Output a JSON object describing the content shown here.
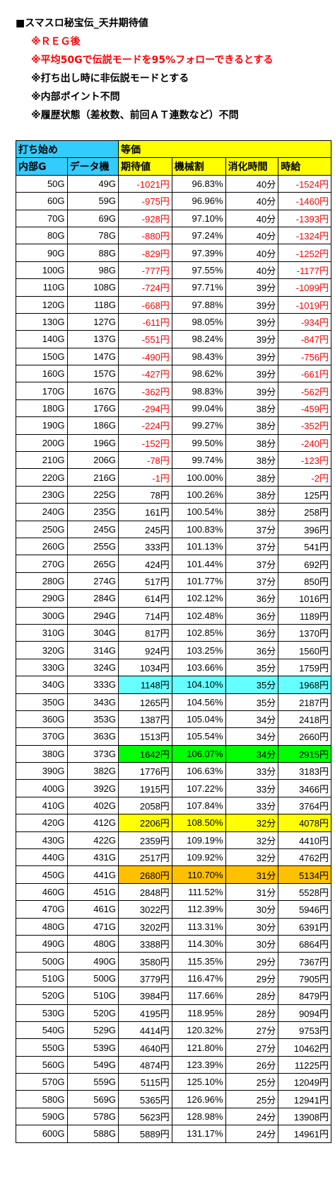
{
  "notes": [
    {
      "text": "■スマスロ秘宝伝_天井期待値",
      "color": "black",
      "kind": "title"
    },
    {
      "text": "※ＲＥＧ後",
      "color": "red",
      "kind": "sub"
    },
    {
      "text": "※平均50Gで伝説モードを95%フォローできるとする",
      "color": "red",
      "kind": "sub"
    },
    {
      "text": "※打ち出し時に非伝説モードとする",
      "color": "black",
      "kind": "sub"
    },
    {
      "text": "※内部ポイント不問",
      "color": "black",
      "kind": "sub"
    },
    {
      "text": "※履歴状態（差枚数、前回ＡＴ連数など）不問",
      "color": "black",
      "kind": "sub"
    }
  ],
  "table": {
    "group_headers": {
      "start": "打ち始め",
      "value": "等価"
    },
    "columns": [
      "内部G",
      "データ機",
      "期待値",
      "機械割",
      "消化時間",
      "時給"
    ],
    "rows": [
      [
        "50G",
        "49G",
        "-1021円",
        "96.83%",
        "40分",
        "-1524円"
      ],
      [
        "60G",
        "59G",
        "-975円",
        "96.96%",
        "40分",
        "-1460円"
      ],
      [
        "70G",
        "69G",
        "-928円",
        "97.10%",
        "40分",
        "-1393円"
      ],
      [
        "80G",
        "78G",
        "-880円",
        "97.24%",
        "40分",
        "-1324円"
      ],
      [
        "90G",
        "88G",
        "-829円",
        "97.39%",
        "40分",
        "-1252円"
      ],
      [
        "100G",
        "98G",
        "-777円",
        "97.55%",
        "40分",
        "-1177円"
      ],
      [
        "110G",
        "108G",
        "-724円",
        "97.71%",
        "39分",
        "-1099円"
      ],
      [
        "120G",
        "118G",
        "-668円",
        "97.88%",
        "39分",
        "-1019円"
      ],
      [
        "130G",
        "127G",
        "-611円",
        "98.05%",
        "39分",
        "-934円"
      ],
      [
        "140G",
        "137G",
        "-551円",
        "98.24%",
        "39分",
        "-847円"
      ],
      [
        "150G",
        "147G",
        "-490円",
        "98.43%",
        "39分",
        "-756円"
      ],
      [
        "160G",
        "157G",
        "-427円",
        "98.62%",
        "39分",
        "-661円"
      ],
      [
        "170G",
        "167G",
        "-362円",
        "98.83%",
        "39分",
        "-562円"
      ],
      [
        "180G",
        "176G",
        "-294円",
        "99.04%",
        "38分",
        "-459円"
      ],
      [
        "190G",
        "186G",
        "-224円",
        "99.27%",
        "38分",
        "-352円"
      ],
      [
        "200G",
        "196G",
        "-152円",
        "99.50%",
        "38分",
        "-240円"
      ],
      [
        "210G",
        "206G",
        "-78円",
        "99.74%",
        "38分",
        "-123円"
      ],
      [
        "220G",
        "216G",
        "-1円",
        "100.00%",
        "38分",
        "-2円"
      ],
      [
        "230G",
        "225G",
        "78円",
        "100.26%",
        "38分",
        "125円"
      ],
      [
        "240G",
        "235G",
        "161円",
        "100.54%",
        "38分",
        "258円"
      ],
      [
        "250G",
        "245G",
        "245円",
        "100.83%",
        "37分",
        "396円"
      ],
      [
        "260G",
        "255G",
        "333円",
        "101.13%",
        "37分",
        "541円"
      ],
      [
        "270G",
        "265G",
        "424円",
        "101.44%",
        "37分",
        "692円"
      ],
      [
        "280G",
        "274G",
        "517円",
        "101.77%",
        "37分",
        "850円"
      ],
      [
        "290G",
        "284G",
        "614円",
        "102.12%",
        "36分",
        "1016円"
      ],
      [
        "300G",
        "294G",
        "714円",
        "102.48%",
        "36分",
        "1189円"
      ],
      [
        "310G",
        "304G",
        "817円",
        "102.85%",
        "36分",
        "1370円"
      ],
      [
        "320G",
        "314G",
        "924円",
        "103.25%",
        "36分",
        "1560円"
      ],
      [
        "330G",
        "324G",
        "1034円",
        "103.66%",
        "35分",
        "1759円"
      ],
      [
        "340G",
        "333G",
        "1148円",
        "104.10%",
        "35分",
        "1968円"
      ],
      [
        "350G",
        "343G",
        "1265円",
        "104.56%",
        "35分",
        "2187円"
      ],
      [
        "360G",
        "353G",
        "1387円",
        "105.04%",
        "34分",
        "2418円"
      ],
      [
        "370G",
        "363G",
        "1513円",
        "105.54%",
        "34分",
        "2660円"
      ],
      [
        "380G",
        "373G",
        "1642円",
        "106.07%",
        "34分",
        "2915円"
      ],
      [
        "390G",
        "382G",
        "1776円",
        "106.63%",
        "33分",
        "3183円"
      ],
      [
        "400G",
        "392G",
        "1915円",
        "107.22%",
        "33分",
        "3466円"
      ],
      [
        "410G",
        "402G",
        "2058円",
        "107.84%",
        "33分",
        "3764円"
      ],
      [
        "420G",
        "412G",
        "2206円",
        "108.50%",
        "32分",
        "4078円"
      ],
      [
        "430G",
        "422G",
        "2359円",
        "109.19%",
        "32分",
        "4410円"
      ],
      [
        "440G",
        "431G",
        "2517円",
        "109.92%",
        "32分",
        "4762円"
      ],
      [
        "450G",
        "441G",
        "2680円",
        "110.70%",
        "31分",
        "5134円"
      ],
      [
        "460G",
        "451G",
        "2848円",
        "111.52%",
        "31分",
        "5528円"
      ],
      [
        "470G",
        "461G",
        "3022円",
        "112.39%",
        "30分",
        "5946円"
      ],
      [
        "480G",
        "471G",
        "3202円",
        "113.31%",
        "30分",
        "6391円"
      ],
      [
        "490G",
        "480G",
        "3388円",
        "114.30%",
        "30分",
        "6864円"
      ],
      [
        "500G",
        "490G",
        "3580円",
        "115.35%",
        "29分",
        "7367円"
      ],
      [
        "510G",
        "500G",
        "3779円",
        "116.47%",
        "29分",
        "7905円"
      ],
      [
        "520G",
        "510G",
        "3984円",
        "117.66%",
        "28分",
        "8479円"
      ],
      [
        "530G",
        "520G",
        "4195円",
        "118.95%",
        "28分",
        "9094円"
      ],
      [
        "540G",
        "529G",
        "4414円",
        "120.32%",
        "27分",
        "9753円"
      ],
      [
        "550G",
        "539G",
        "4640円",
        "121.80%",
        "27分",
        "10462円"
      ],
      [
        "560G",
        "549G",
        "4874円",
        "123.39%",
        "26分",
        "11225円"
      ],
      [
        "570G",
        "559G",
        "5115円",
        "125.10%",
        "25分",
        "12049円"
      ],
      [
        "580G",
        "569G",
        "5365円",
        "126.96%",
        "25分",
        "12941円"
      ],
      [
        "590G",
        "578G",
        "5623円",
        "128.98%",
        "24分",
        "13908円"
      ],
      [
        "600G",
        "588G",
        "5889円",
        "131.17%",
        "24分",
        "14961円"
      ]
    ],
    "highlights": {
      "340G": "cyan",
      "380G": "green",
      "420G": "yellow",
      "450G": "orange"
    },
    "colors": {
      "header_blue": "#33ccff",
      "header_yellow": "#ffff00",
      "negative": "#ff0000",
      "cyan": "#66ffff",
      "green": "#00ff00",
      "yellow": "#ffff00",
      "orange": "#ffc000"
    }
  }
}
